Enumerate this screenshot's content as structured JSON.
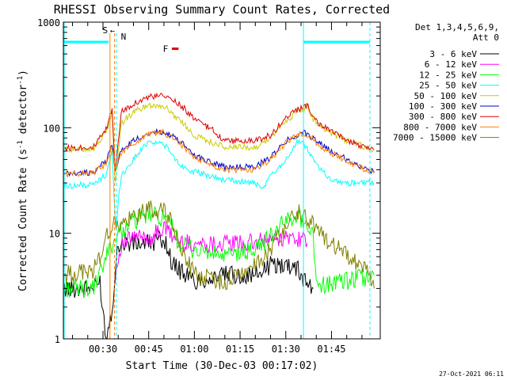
{
  "chart_data": {
    "type": "line",
    "title": "RHESSI Observing Summary Count Rates, Corrected",
    "xlabel": "Start Time (30-Dec-03 00:17:02)",
    "ylabel_main": "Corrected Count Rate (s",
    "ylabel_sup1": "-1",
    "ylabel_mid": " detector",
    "ylabel_sup2": "-1",
    "ylabel_end": ")",
    "y_scale": "log",
    "ylim": [
      1,
      1000
    ],
    "xlim_minutes": [
      17,
      121
    ],
    "y_ticks": [
      {
        "value": 1,
        "label": "1"
      },
      {
        "value": 10,
        "label": "10"
      },
      {
        "value": 100,
        "label": "100"
      },
      {
        "value": 1000,
        "label": "1000"
      }
    ],
    "x_ticks": [
      {
        "minute": 30,
        "label": "00:30"
      },
      {
        "minute": 45,
        "label": "00:45"
      },
      {
        "minute": 60,
        "label": "01:00"
      },
      {
        "minute": 75,
        "label": "01:15"
      },
      {
        "minute": 90,
        "label": "01:30"
      },
      {
        "minute": 105,
        "label": "01:45"
      }
    ],
    "legend_header_1": "Det 1,3,4,5,6,9,",
    "legend_header_2": "Att 0",
    "legend_position": "top-right, outside plot",
    "grid": false,
    "series": [
      {
        "name": "3 - 6 keV",
        "color": "#000000",
        "points": [
          [
            17,
            3
          ],
          [
            27,
            3
          ],
          [
            29,
            3.5
          ],
          [
            31,
            1
          ],
          [
            33,
            2
          ],
          [
            35,
            8
          ],
          [
            40,
            8
          ],
          [
            45,
            8
          ],
          [
            50,
            9
          ],
          [
            53,
            5
          ],
          [
            60,
            3.5
          ],
          [
            70,
            4
          ],
          [
            80,
            4
          ],
          [
            85,
            5
          ],
          [
            93,
            5
          ],
          [
            95,
            4
          ],
          [
            97,
            3.5
          ],
          [
            99,
            3
          ]
        ]
      },
      {
        "name": "6 - 12 keV",
        "color": "#ff00ff",
        "points": [
          [
            34,
            4
          ],
          [
            36,
            8
          ],
          [
            40,
            9
          ],
          [
            45,
            9
          ],
          [
            50,
            11
          ],
          [
            52,
            10
          ],
          [
            55,
            8
          ],
          [
            60,
            8
          ],
          [
            70,
            8
          ],
          [
            80,
            8
          ],
          [
            85,
            9
          ],
          [
            90,
            9
          ],
          [
            95,
            9
          ],
          [
            97,
            8
          ]
        ]
      },
      {
        "name": "12 - 25 keV",
        "color": "#00ff00",
        "points": [
          [
            17,
            3
          ],
          [
            27,
            3
          ],
          [
            29,
            4
          ],
          [
            32,
            7
          ],
          [
            35,
            10
          ],
          [
            40,
            13
          ],
          [
            45,
            15
          ],
          [
            50,
            14
          ],
          [
            53,
            11
          ],
          [
            55,
            8
          ],
          [
            60,
            7
          ],
          [
            70,
            6
          ],
          [
            80,
            7
          ],
          [
            86,
            10
          ],
          [
            90,
            13
          ],
          [
            93,
            15
          ],
          [
            96,
            13
          ],
          [
            99,
            10
          ],
          [
            100,
            3.2
          ],
          [
            110,
            3.5
          ],
          [
            119,
            4
          ]
        ]
      },
      {
        "name": "25 - 50 keV",
        "color": "#00ffff",
        "points": [
          [
            17,
            28
          ],
          [
            27,
            29
          ],
          [
            31,
            36
          ],
          [
            33,
            60
          ],
          [
            34,
            12
          ],
          [
            36,
            35
          ],
          [
            40,
            50
          ],
          [
            45,
            75
          ],
          [
            50,
            70
          ],
          [
            55,
            45
          ],
          [
            60,
            38
          ],
          [
            70,
            32
          ],
          [
            80,
            30
          ],
          [
            82,
            25
          ],
          [
            85,
            35
          ],
          [
            90,
            50
          ],
          [
            92,
            60
          ],
          [
            94,
            75
          ],
          [
            97,
            65
          ],
          [
            100,
            45
          ],
          [
            105,
            32
          ],
          [
            110,
            30
          ],
          [
            119,
            30
          ]
        ]
      },
      {
        "name": "50 - 100 keV",
        "color": "#cccc00",
        "points": [
          [
            17,
            62
          ],
          [
            27,
            64
          ],
          [
            31,
            90
          ],
          [
            33,
            140
          ],
          [
            34,
            30
          ],
          [
            36,
            110
          ],
          [
            40,
            140
          ],
          [
            45,
            165
          ],
          [
            50,
            160
          ],
          [
            55,
            120
          ],
          [
            60,
            85
          ],
          [
            70,
            65
          ],
          [
            80,
            65
          ],
          [
            85,
            80
          ],
          [
            90,
            115
          ],
          [
            94,
            145
          ],
          [
            96,
            150
          ],
          [
            97,
            170
          ],
          [
            99,
            120
          ],
          [
            103,
            95
          ],
          [
            110,
            75
          ],
          [
            119,
            62
          ]
        ]
      },
      {
        "name": "100 - 300 keV",
        "color": "#0000cc",
        "points": [
          [
            17,
            36
          ],
          [
            27,
            38
          ],
          [
            31,
            48
          ],
          [
            33,
            70
          ],
          [
            34,
            40
          ],
          [
            36,
            60
          ],
          [
            40,
            75
          ],
          [
            45,
            90
          ],
          [
            50,
            92
          ],
          [
            55,
            75
          ],
          [
            60,
            55
          ],
          [
            70,
            42
          ],
          [
            80,
            43
          ],
          [
            85,
            52
          ],
          [
            90,
            75
          ],
          [
            95,
            90
          ],
          [
            97,
            88
          ],
          [
            100,
            75
          ],
          [
            103,
            65
          ],
          [
            110,
            50
          ],
          [
            119,
            38
          ]
        ]
      },
      {
        "name": "300 - 800 keV",
        "color": "#dd0000",
        "points": [
          [
            17,
            64
          ],
          [
            27,
            66
          ],
          [
            31,
            95
          ],
          [
            33,
            150
          ],
          [
            34,
            40
          ],
          [
            36,
            140
          ],
          [
            40,
            170
          ],
          [
            45,
            195
          ],
          [
            50,
            200
          ],
          [
            55,
            170
          ],
          [
            60,
            120
          ],
          [
            66,
            95
          ],
          [
            70,
            75
          ],
          [
            80,
            75
          ],
          [
            85,
            85
          ],
          [
            90,
            125
          ],
          [
            94,
            150
          ],
          [
            96,
            155
          ],
          [
            97,
            165
          ],
          [
            99,
            120
          ],
          [
            103,
            100
          ],
          [
            110,
            75
          ],
          [
            119,
            62
          ]
        ]
      },
      {
        "name": "800 - 7000 keV",
        "color": "#ff8000",
        "points": [
          [
            17,
            36
          ],
          [
            27,
            38
          ],
          [
            31,
            45
          ],
          [
            33,
            65
          ],
          [
            34,
            40
          ],
          [
            36,
            58
          ],
          [
            40,
            70
          ],
          [
            45,
            88
          ],
          [
            50,
            90
          ],
          [
            55,
            72
          ],
          [
            60,
            52
          ],
          [
            70,
            40
          ],
          [
            80,
            40
          ],
          [
            85,
            50
          ],
          [
            90,
            72
          ],
          [
            95,
            88
          ],
          [
            97,
            86
          ],
          [
            100,
            72
          ],
          [
            103,
            62
          ],
          [
            110,
            48
          ],
          [
            119,
            37
          ]
        ]
      },
      {
        "name": "7000 - 15000 keV",
        "color": "#808000",
        "points": [
          [
            17,
            4
          ],
          [
            27,
            4.5
          ],
          [
            29,
            6
          ],
          [
            31,
            9
          ],
          [
            33,
            12
          ],
          [
            36,
            12
          ],
          [
            40,
            14
          ],
          [
            45,
            17
          ],
          [
            50,
            16
          ],
          [
            53,
            12
          ],
          [
            55,
            8
          ],
          [
            60,
            4
          ],
          [
            70,
            3.5
          ],
          [
            80,
            5
          ],
          [
            85,
            7
          ],
          [
            90,
            12
          ],
          [
            93,
            16
          ],
          [
            96,
            15
          ],
          [
            99,
            12
          ],
          [
            103,
            9
          ],
          [
            110,
            6
          ],
          [
            116,
            4.5
          ],
          [
            119,
            3
          ]
        ]
      }
    ],
    "annotations": {
      "saa_label": "S",
      "saa_arrow": "←",
      "night_label": "N",
      "flare_label": "F",
      "saa_minute": 32.3,
      "saa_end_minute": 33.8,
      "night_start_minute": 34.4,
      "night_end_minute": 117.6,
      "day_start_minute": 95.8,
      "flare_start_minute": 52.6,
      "flare_end_minute": 54.8,
      "attenuator_marker_level": 650,
      "flare_marker_level": 560
    },
    "colors": {
      "saa_marker": "#ff8000",
      "night_marker": "#00ffff",
      "flare_marker": "#dd0000"
    }
  },
  "footer_timestamp": "27-Oct-2021 06:11"
}
